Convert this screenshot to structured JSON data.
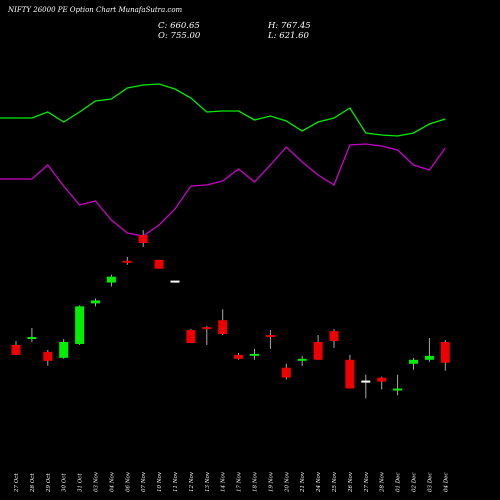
{
  "header": {
    "title": "NIFTY 26000  PE Option  Chart MunafaSutra.com",
    "close": "C: 660.65",
    "open": "O: 755.00",
    "high": "H: 767.45",
    "low": "L: 621.60"
  },
  "colors": {
    "up": "#00ee00",
    "down": "#ee0000",
    "neutral": "#ffffff",
    "line1": "#00ee00",
    "line2": "#cc00cc"
  },
  "chart_data": {
    "type": "candlestick",
    "x": [
      "27 Oct",
      "28 Oct",
      "29 Oct",
      "30 Oct",
      "31 Oct",
      "03 Nov",
      "04 Nov",
      "06 Nov",
      "07 Nov",
      "10 Nov",
      "11 Nov",
      "12 Nov",
      "13 Nov",
      "14 Nov",
      "17 Nov",
      "18 Nov",
      "19 Nov",
      "20 Nov",
      "21 Nov",
      "24 Nov",
      "25 Nov",
      "26 Nov",
      "27 Nov",
      "28 Nov",
      "01 Dec",
      "02 Dec",
      "03 Dec",
      "04 Dec"
    ],
    "candles": [
      {
        "o": 155,
        "h": 159,
        "l": 145,
        "c": 145
      },
      {
        "o": 162,
        "h": 172,
        "l": 158,
        "c": 163
      },
      {
        "o": 148,
        "h": 150,
        "l": 134,
        "c": 139
      },
      {
        "o": 142,
        "h": 161,
        "l": 141,
        "c": 158
      },
      {
        "o": 156,
        "h": 195,
        "l": 155,
        "c": 194
      },
      {
        "o": 197,
        "h": 202,
        "l": 194,
        "c": 200
      },
      {
        "o": 218,
        "h": 226,
        "l": 214,
        "c": 224
      },
      {
        "o": 240,
        "h": 244,
        "l": 236,
        "c": 239
      },
      {
        "o": 266,
        "h": 271,
        "l": 254,
        "c": 258
      },
      {
        "o": 241,
        "h": 241,
        "l": 232,
        "c": 232
      },
      {
        "o": 220,
        "h": 220,
        "l": 220,
        "c": 220
      },
      {
        "o": 170,
        "h": 171,
        "l": 157,
        "c": 157
      },
      {
        "o": 173,
        "h": 174,
        "l": 155,
        "c": 172
      },
      {
        "o": 180,
        "h": 191,
        "l": 165,
        "c": 166
      },
      {
        "o": 145,
        "h": 147,
        "l": 140,
        "c": 141
      },
      {
        "o": 145,
        "h": 151,
        "l": 140,
        "c": 146
      },
      {
        "o": 165,
        "h": 170,
        "l": 151,
        "c": 163
      },
      {
        "o": 132,
        "h": 136,
        "l": 120,
        "c": 122
      },
      {
        "o": 139,
        "h": 144,
        "l": 134,
        "c": 141
      },
      {
        "o": 158,
        "h": 165,
        "l": 140,
        "c": 140
      },
      {
        "o": 169,
        "h": 171,
        "l": 152,
        "c": 159
      },
      {
        "o": 140,
        "h": 145,
        "l": 111,
        "c": 111
      },
      {
        "o": 119,
        "h": 125,
        "l": 101,
        "c": 119
      },
      {
        "o": 122,
        "h": 123,
        "l": 110,
        "c": 118
      },
      {
        "o": 109,
        "h": 125,
        "l": 104,
        "c": 111
      },
      {
        "o": 136,
        "h": 142,
        "l": 130,
        "c": 140
      },
      {
        "o": 140,
        "h": 162,
        "l": 138,
        "c": 144
      },
      {
        "o": 158,
        "h": 160,
        "l": 129,
        "c": 137
      }
    ],
    "indicator_lines": [
      {
        "values": [
          118,
          118,
          112,
          122,
          112,
          101,
          99,
          88,
          85,
          84,
          89,
          98,
          112,
          111,
          111,
          120,
          116,
          121,
          131,
          122,
          118,
          108,
          133,
          135,
          136,
          133,
          124,
          119
        ]
      },
      {
        "values": [
          179,
          179,
          165,
          186,
          205,
          201,
          220,
          233,
          236,
          225,
          209,
          186,
          185,
          181,
          169,
          182,
          165,
          147,
          162,
          175,
          185,
          145,
          144,
          146,
          150,
          165,
          170,
          148
        ]
      }
    ]
  }
}
